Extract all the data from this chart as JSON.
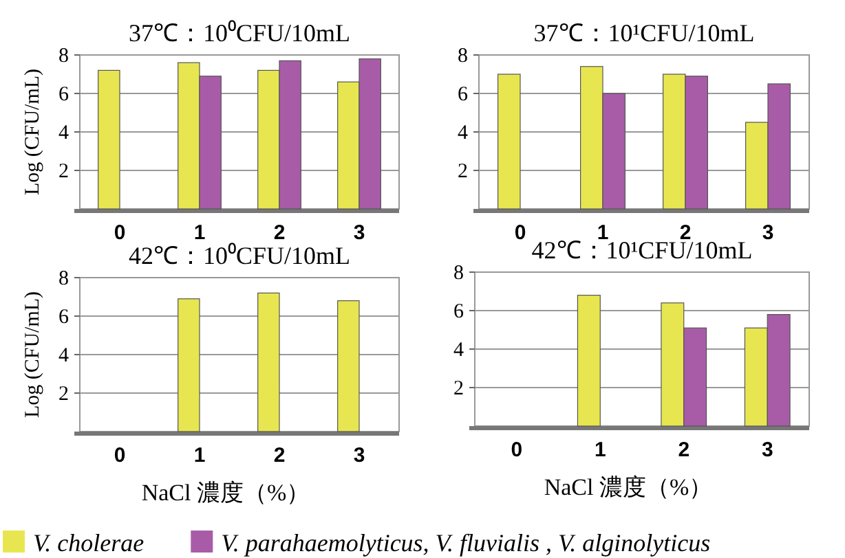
{
  "chart_data": [
    {
      "type": "bar",
      "title": "37℃：10⁰CFU/10mL",
      "ylabel": "Log (CFU/mL)",
      "categories": [
        "0",
        "1",
        "2",
        "3"
      ],
      "ylim": [
        0,
        8
      ],
      "yticks": [
        2,
        4,
        6,
        8
      ],
      "grid": "y",
      "legend": "bottom",
      "series": [
        {
          "name": "V. cholerae",
          "color": "#e8e650",
          "values": [
            7.2,
            7.6,
            7.2,
            6.6
          ]
        },
        {
          "name": "V. parahaemolyticus, V. fluvialis , V. alginolyticus",
          "color": "#a85ca8",
          "values": [
            null,
            6.9,
            7.7,
            7.8
          ]
        }
      ]
    },
    {
      "type": "bar",
      "title": "37℃：10¹CFU/10mL",
      "categories": [
        "0",
        "1",
        "2",
        "3"
      ],
      "ylim": [
        0,
        8
      ],
      "yticks": [
        2,
        4,
        6,
        8
      ],
      "grid": "y",
      "series": [
        {
          "color": "#e8e650",
          "values": [
            7.0,
            7.4,
            7.0,
            4.5
          ]
        },
        {
          "color": "#a85ca8",
          "values": [
            null,
            6.0,
            6.9,
            6.5
          ]
        }
      ]
    },
    {
      "type": "bar",
      "title": "42℃：10⁰CFU/10mL",
      "ylabel": "Log (CFU/mL)",
      "xlabel": "NaCl 濃度（%）",
      "categories": [
        "0",
        "1",
        "2",
        "3"
      ],
      "ylim": [
        0,
        8
      ],
      "yticks": [
        2,
        4,
        6,
        8
      ],
      "grid": "y",
      "series": [
        {
          "color": "#e8e650",
          "values": [
            null,
            6.9,
            7.2,
            6.8
          ]
        }
      ]
    },
    {
      "type": "bar",
      "title": "42℃：10¹CFU/10mL",
      "xlabel": "NaCl 濃度（%）",
      "categories": [
        "0",
        "1",
        "2",
        "3"
      ],
      "ylim": [
        0,
        8
      ],
      "yticks": [
        2,
        4,
        6,
        8
      ],
      "grid": "y",
      "series": [
        {
          "color": "#e8e650",
          "values": [
            null,
            6.8,
            6.4,
            5.1
          ]
        },
        {
          "color": "#a85ca8",
          "values": [
            null,
            null,
            5.1,
            5.8
          ]
        }
      ]
    }
  ]
}
